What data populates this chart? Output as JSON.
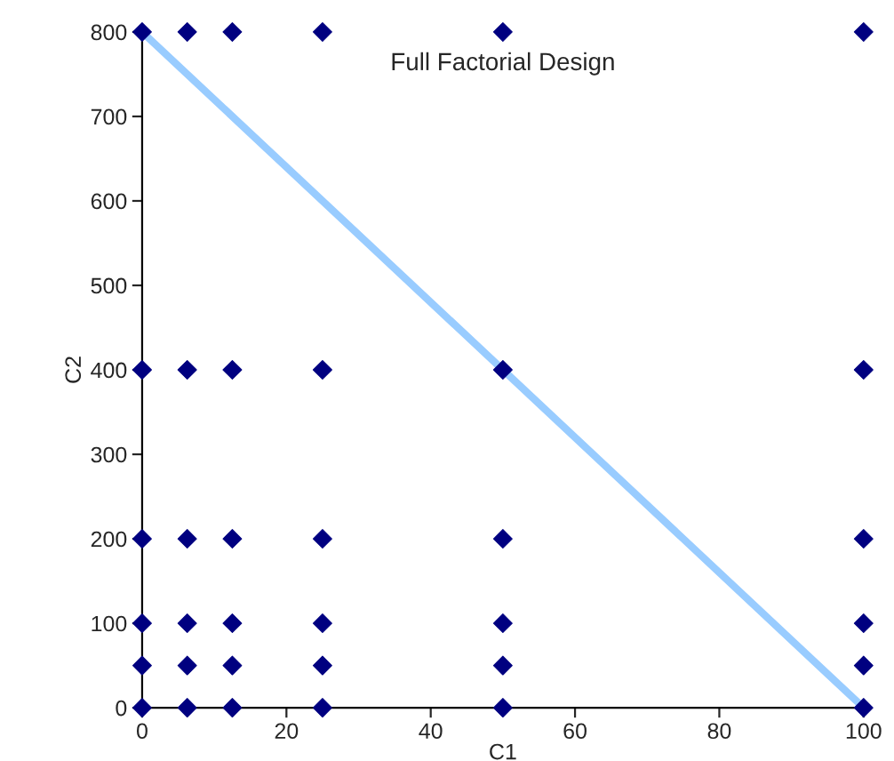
{
  "chart_data": {
    "type": "scatter",
    "title": "Full Factorial Design",
    "xlabel": "C1",
    "ylabel": "C2",
    "xlim": [
      0,
      100
    ],
    "xticks": [
      0,
      20,
      40,
      60,
      80,
      100
    ],
    "ylim": [
      0,
      800
    ],
    "yticks": [
      0,
      100,
      200,
      300,
      400,
      500,
      600,
      700,
      800
    ],
    "grid": false,
    "series": [
      {
        "type": "line",
        "color": "#99ccff",
        "x": [
          0,
          100
        ],
        "values": [
          800,
          0
        ]
      },
      {
        "marker": "diamond",
        "color": "#000080",
        "x": [
          0,
          0,
          0,
          0,
          0,
          0,
          6.25,
          6.25,
          6.25,
          6.25,
          6.25,
          6.25,
          12.5,
          12.5,
          12.5,
          12.5,
          12.5,
          12.5,
          25,
          25,
          25,
          25,
          25,
          25,
          50,
          50,
          50,
          50,
          50,
          50,
          100,
          100,
          100,
          100,
          100,
          100
        ],
        "values": [
          0,
          50,
          100,
          200,
          400,
          800,
          0,
          50,
          100,
          200,
          400,
          800,
          0,
          50,
          100,
          200,
          400,
          800,
          0,
          50,
          100,
          200,
          400,
          800,
          0,
          50,
          100,
          200,
          400,
          800,
          0,
          50,
          100,
          200,
          400,
          800
        ]
      }
    ]
  }
}
